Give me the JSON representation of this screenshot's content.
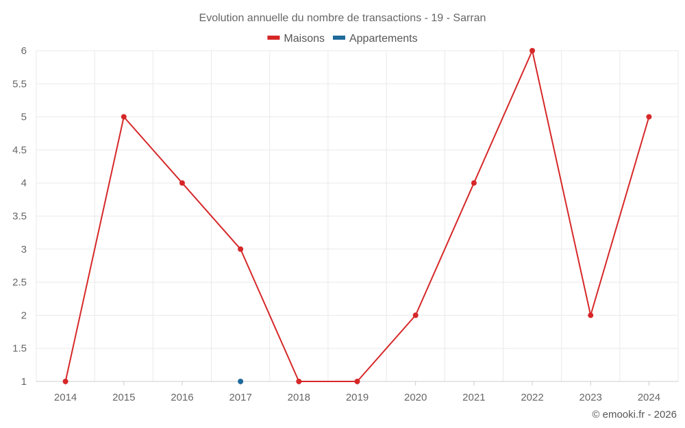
{
  "chart_data": {
    "type": "line",
    "title": "Evolution annuelle du nombre de transactions - 19 - Sarran",
    "categories": [
      "2014",
      "2015",
      "2016",
      "2017",
      "2018",
      "2019",
      "2020",
      "2021",
      "2022",
      "2023",
      "2024"
    ],
    "series": [
      {
        "name": "Maisons",
        "color": "#d62728",
        "values": [
          1,
          5,
          4,
          3,
          1,
          1,
          2,
          4,
          6,
          2,
          5
        ]
      },
      {
        "name": "Appartements",
        "color": "#1f6a9a",
        "values": [
          null,
          null,
          null,
          1,
          null,
          null,
          null,
          null,
          null,
          null,
          null
        ]
      }
    ],
    "ylim": [
      1,
      6
    ],
    "yticks": [
      "1",
      "1.5",
      "2",
      "2.5",
      "3",
      "3.5",
      "4",
      "4.5",
      "5",
      "5.5",
      "6"
    ],
    "grid": true,
    "legend": "top-center"
  },
  "credit": "© emooki.fr - 2026"
}
